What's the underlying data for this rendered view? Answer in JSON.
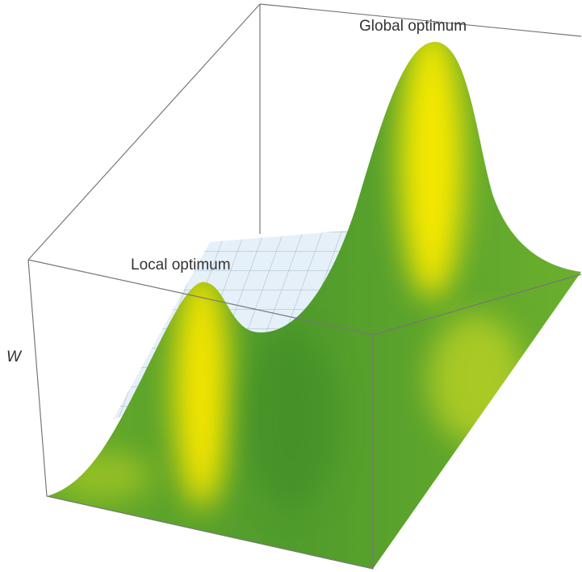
{
  "labels": {
    "global": "Global optimum",
    "local": "Local optimum",
    "axis": "W"
  }
}
